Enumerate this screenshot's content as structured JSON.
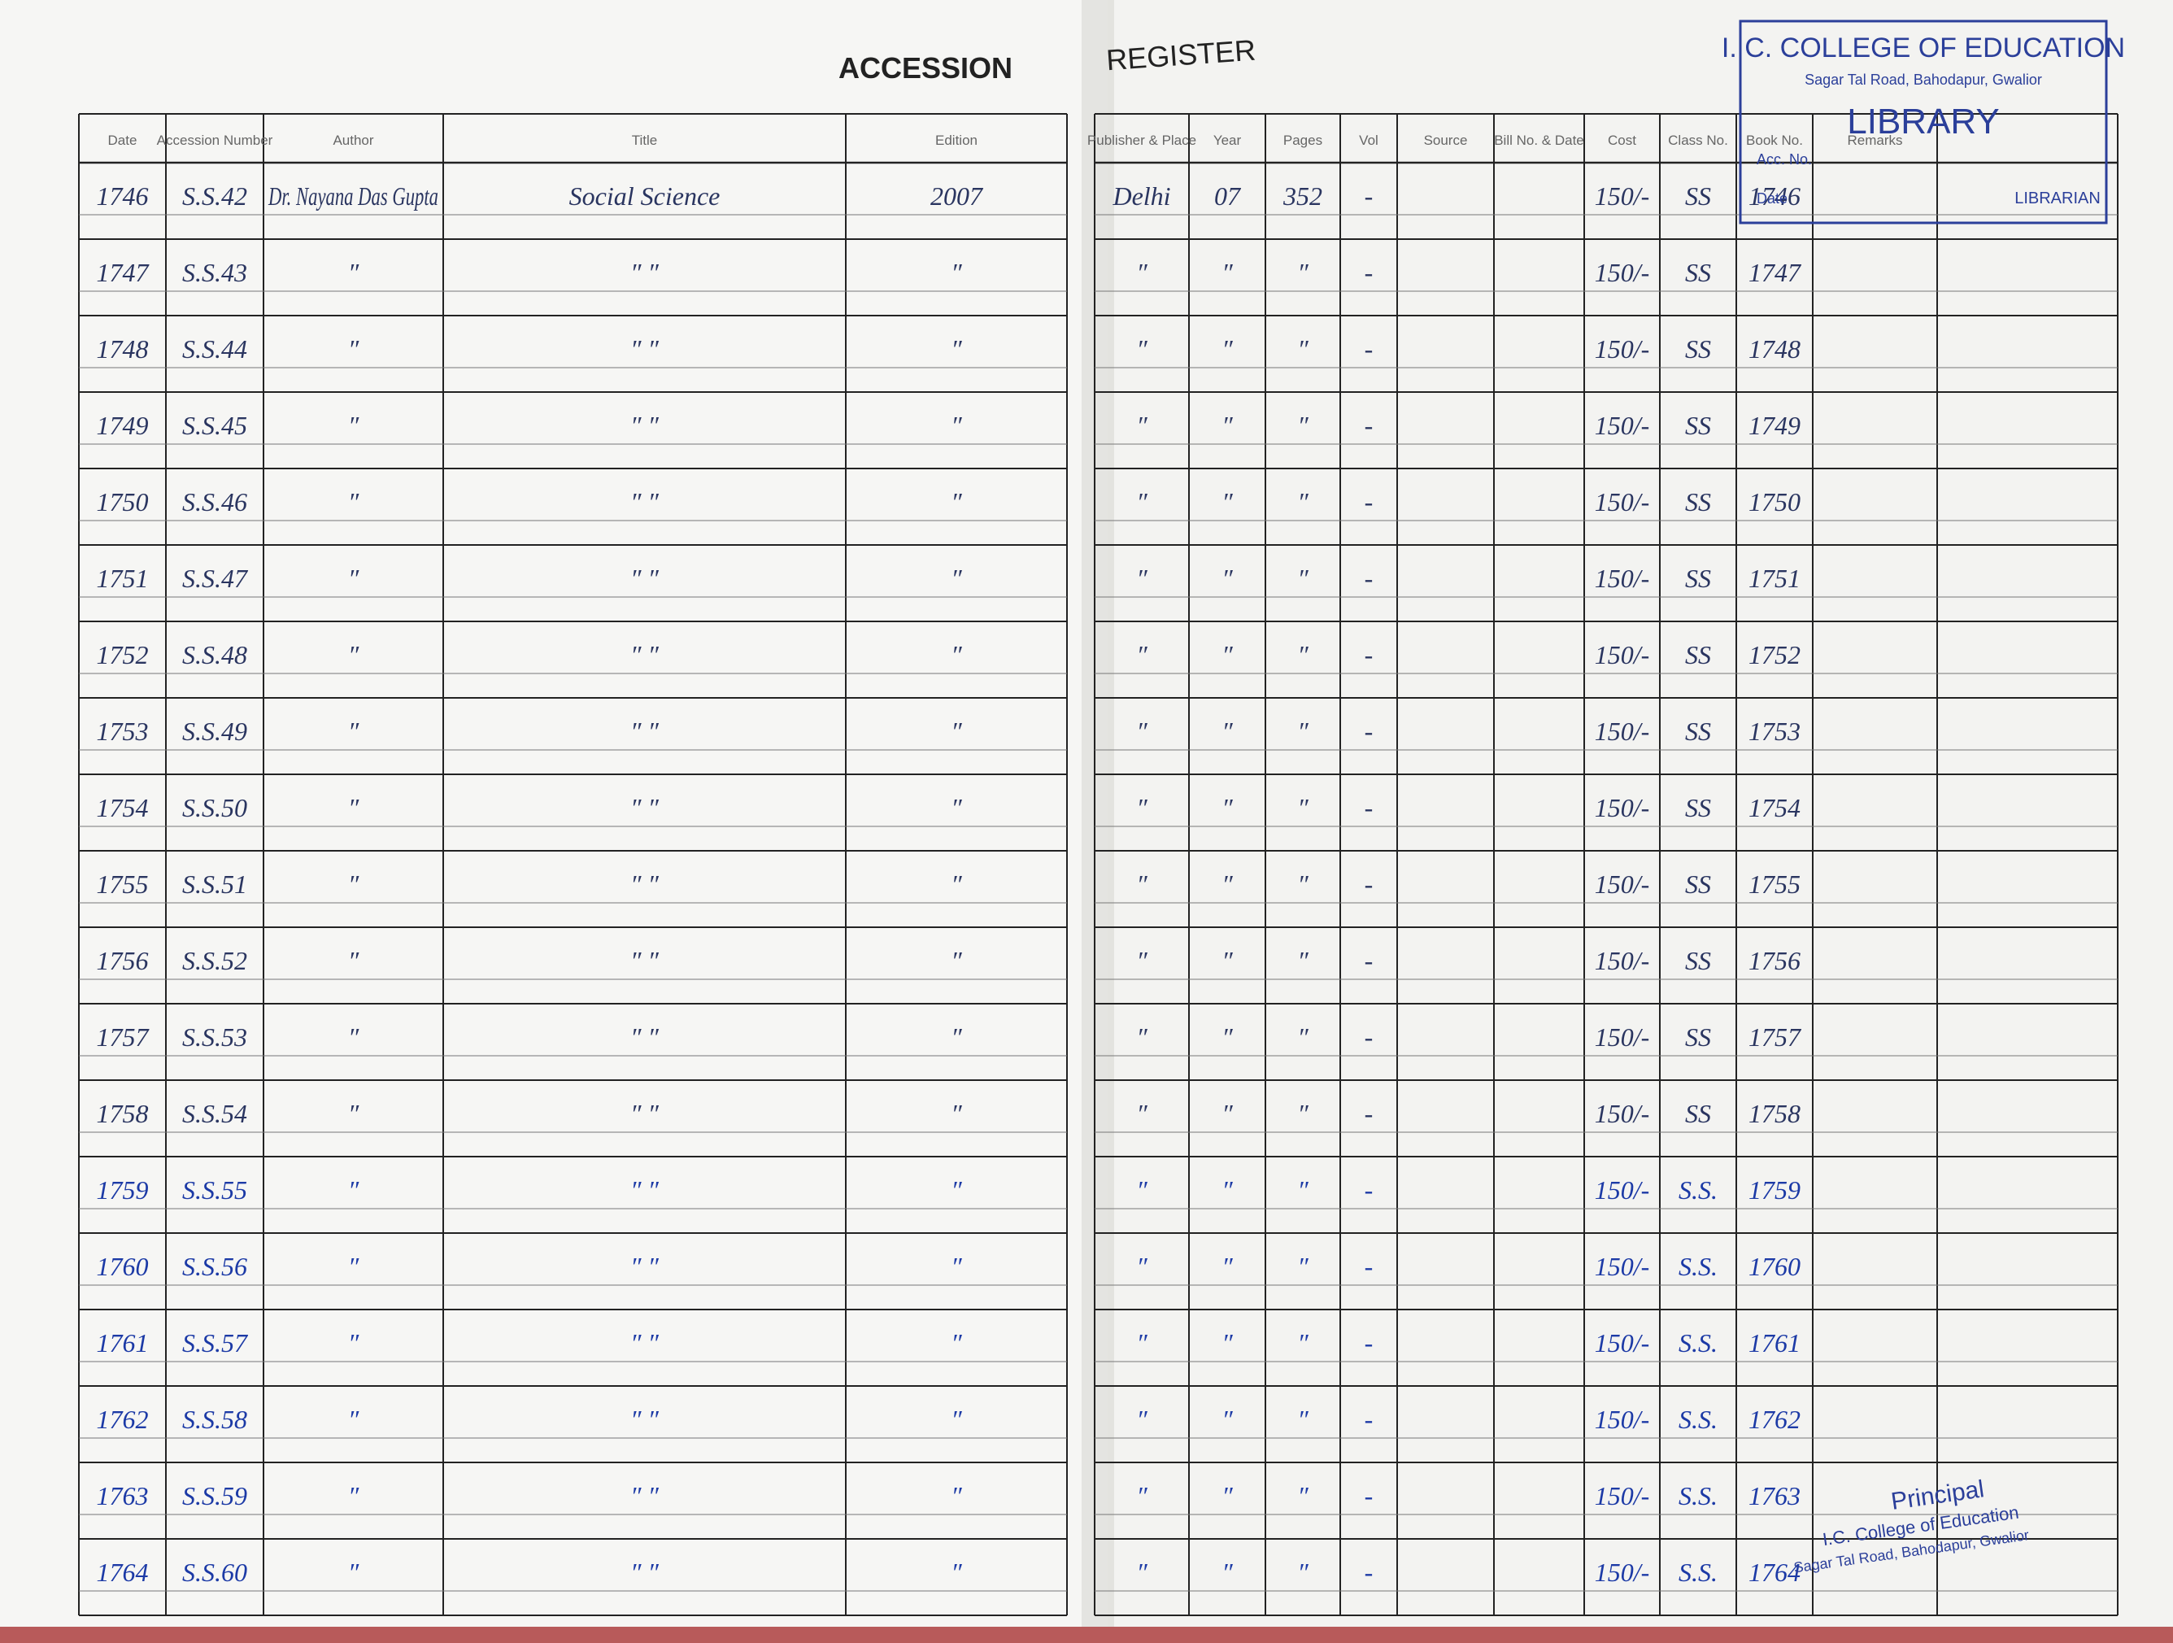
{
  "header": {
    "left_title": "ACCESSION",
    "right_title": "REGISTER"
  },
  "left_columns": [
    "Date",
    "Accession Number",
    "Author",
    "Title",
    "Edition"
  ],
  "right_columns": [
    "Publisher & Place",
    "Year",
    "Pages",
    "Vol",
    "Source",
    "Bill No. & Date",
    "Cost",
    "Class No.",
    "Book No.",
    "Remarks"
  ],
  "stamp": {
    "college": "I. C. COLLEGE OF EDUCATION",
    "address": "Sagar Tal Road, Bahodapur, Gwalior",
    "library": "LIBRARY",
    "acc_label": "Acc. No.",
    "date_label": "Date",
    "librarian": "LIBRARIAN"
  },
  "rows": [
    [
      "1746",
      "S.S.42",
      "Dr. Nayana Das Gupta",
      "Social Science",
      "2007",
      "Delhi",
      "07",
      "352",
      "-",
      "150/-",
      "SS",
      "1746"
    ],
    [
      "1747",
      "S.S.43",
      "″",
      "″   ″",
      "″",
      "″",
      "″",
      "″",
      "-",
      "150/-",
      "SS",
      "1747"
    ],
    [
      "1748",
      "S.S.44",
      "″",
      "″   ″",
      "″",
      "″",
      "″",
      "″",
      "-",
      "150/-",
      "SS",
      "1748"
    ],
    [
      "1749",
      "S.S.45",
      "″",
      "″   ″",
      "″",
      "″",
      "″",
      "″",
      "-",
      "150/-",
      "SS",
      "1749"
    ],
    [
      "1750",
      "S.S.46",
      "″",
      "″   ″",
      "″",
      "″",
      "″",
      "″",
      "-",
      "150/-",
      "SS",
      "1750"
    ],
    [
      "1751",
      "S.S.47",
      "″",
      "″   ″",
      "″",
      "″",
      "″",
      "″",
      "-",
      "150/-",
      "SS",
      "1751"
    ],
    [
      "1752",
      "S.S.48",
      "″",
      "″   ″",
      "″",
      "″",
      "″",
      "″",
      "-",
      "150/-",
      "SS",
      "1752"
    ],
    [
      "1753",
      "S.S.49",
      "″",
      "″   ″",
      "″",
      "″",
      "″",
      "″",
      "-",
      "150/-",
      "SS",
      "1753"
    ],
    [
      "1754",
      "S.S.50",
      "″",
      "″   ″",
      "″",
      "″",
      "″",
      "″",
      "-",
      "150/-",
      "SS",
      "1754"
    ],
    [
      "1755",
      "S.S.51",
      "″",
      "″   ″",
      "″",
      "″",
      "″",
      "″",
      "-",
      "150/-",
      "SS",
      "1755"
    ],
    [
      "1756",
      "S.S.52",
      "″",
      "″   ″",
      "″",
      "″",
      "″",
      "″",
      "-",
      "150/-",
      "SS",
      "1756"
    ],
    [
      "1757",
      "S.S.53",
      "″",
      "″   ″",
      "″",
      "″",
      "″",
      "″",
      "-",
      "150/-",
      "SS",
      "1757"
    ],
    [
      "1758",
      "S.S.54",
      "″",
      "″   ″",
      "″",
      "″",
      "″",
      "″",
      "-",
      "150/-",
      "SS",
      "1758"
    ],
    [
      "1759",
      "S.S.55",
      "″",
      "″   ″",
      "″",
      "″",
      "″",
      "″",
      "-",
      "150/-",
      "S.S.",
      "1759"
    ],
    [
      "1760",
      "S.S.56",
      "″",
      "″   ″",
      "″",
      "″",
      "″",
      "″",
      "-",
      "150/-",
      "S.S.",
      "1760"
    ],
    [
      "1761",
      "S.S.57",
      "″",
      "″   ″",
      "″",
      "″",
      "″",
      "″",
      "-",
      "150/-",
      "S.S.",
      "1761"
    ],
    [
      "1762",
      "S.S.58",
      "″",
      "″   ″",
      "″",
      "″",
      "″",
      "″",
      "-",
      "150/-",
      "S.S.",
      "1762"
    ],
    [
      "1763",
      "S.S.59",
      "″",
      "″   ″",
      "″",
      "″",
      "″",
      "″",
      "-",
      "150/-",
      "S.S.",
      "1763"
    ],
    [
      "1764",
      "S.S.60",
      "″",
      "″   ″",
      "″",
      "″",
      "″",
      "″",
      "-",
      "150/-",
      "S.S.",
      "1764"
    ]
  ],
  "signature": {
    "role": "Principal",
    "college": "I.C. College of Education",
    "address": "Sagar Tal Road, Bahodapur, Gwalior"
  }
}
